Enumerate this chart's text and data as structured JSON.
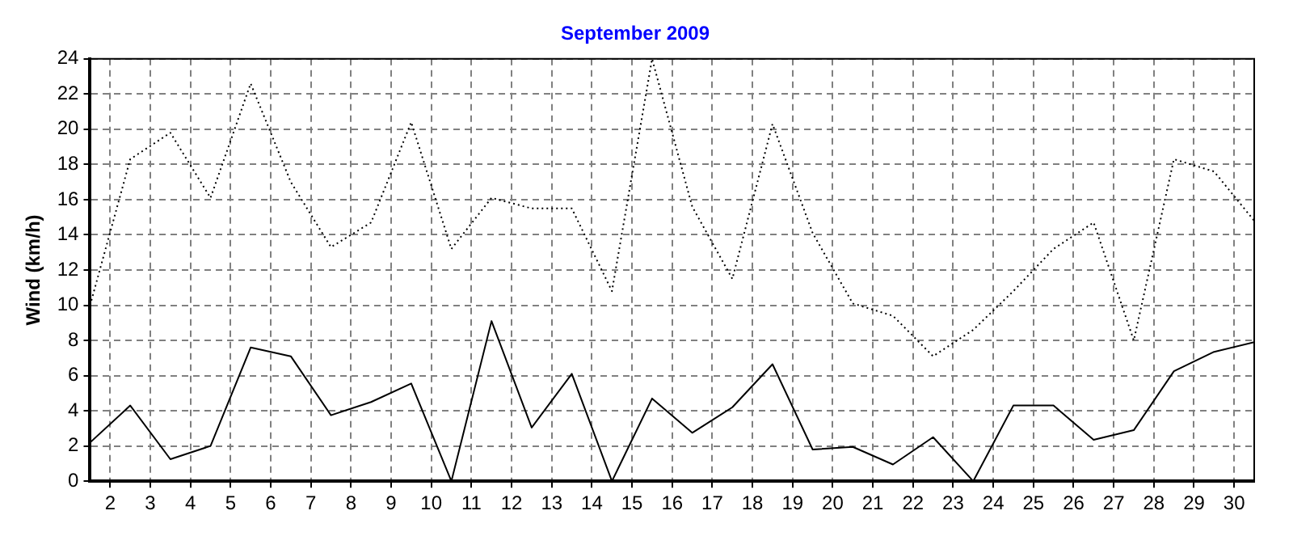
{
  "chart_data": {
    "type": "line",
    "title": "September 2009",
    "ylabel": "Wind (km/h)",
    "x": [
      1.5,
      2.5,
      3.5,
      4.5,
      5.5,
      6.5,
      7.5,
      8.5,
      9.5,
      10.5,
      11.5,
      12.5,
      13.5,
      14.5,
      15.5,
      16.5,
      17.5,
      18.5,
      19.5,
      20.5,
      21.5,
      22.5,
      23.5,
      24.5,
      25.5,
      26.5,
      27.5,
      28.5,
      29.5,
      30.5
    ],
    "series": [
      {
        "color": "#000000",
        "line_style": "dotted",
        "values": [
          10,
          18.3,
          19.8,
          16.1,
          22.6,
          17,
          13.3,
          14.7,
          20.4,
          13.2,
          16.1,
          15.5,
          15.5,
          10.8,
          24,
          15.6,
          11.5,
          20.3,
          14.1,
          10.1,
          9.4,
          7.1,
          8.6,
          10.8,
          13.2,
          14.7,
          8,
          18.3,
          17.6,
          14.8
        ]
      },
      {
        "color": "#000000",
        "line_style": "solid",
        "values": [
          2.2,
          4.3,
          1.25,
          2,
          7.6,
          7.1,
          3.75,
          4.5,
          5.55,
          0,
          9.1,
          3.05,
          6.1,
          0,
          4.7,
          2.75,
          4.2,
          6.65,
          1.8,
          1.95,
          0.95,
          2.5,
          0,
          4.3,
          4.3,
          2.35,
          2.9,
          6.25,
          7.35,
          7.9
        ]
      }
    ],
    "xlim": [
      1.5,
      30.5
    ],
    "xticks": [
      2,
      3,
      4,
      5,
      6,
      7,
      8,
      9,
      10,
      11,
      12,
      13,
      14,
      15,
      16,
      17,
      18,
      19,
      20,
      21,
      22,
      23,
      24,
      25,
      26,
      27,
      28,
      29,
      30
    ],
    "ylim": [
      0,
      24
    ],
    "yticks": [
      0,
      2,
      4,
      6,
      8,
      10,
      12,
      14,
      16,
      18,
      20,
      22,
      24
    ],
    "grid": true,
    "legend": false,
    "marker": "none"
  }
}
